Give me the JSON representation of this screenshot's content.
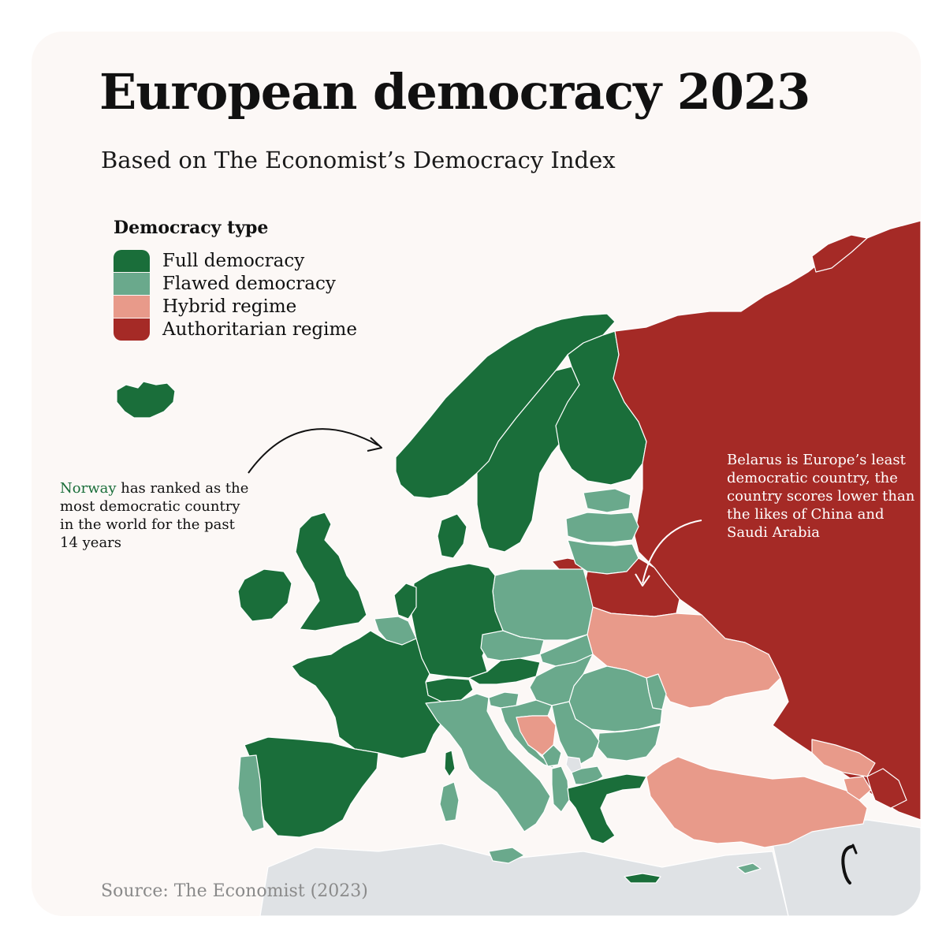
{
  "title": "European democracy 2023",
  "subtitle": "Based on The Economist’s Democracy Index",
  "legend": {
    "title": "Democracy type",
    "items": [
      {
        "label": "Full democracy",
        "color": "#1a6e3a"
      },
      {
        "label": "Flawed democracy",
        "color": "#6aa98c"
      },
      {
        "label": "Hybrid regime",
        "color": "#e89a8a"
      },
      {
        "label": "Authoritarian regime",
        "color": "#a52a26"
      }
    ]
  },
  "annotations": {
    "norway": {
      "highlight": "Norway",
      "rest": " has ranked as the most democratic country in the world for the past 14 years"
    },
    "belarus": "Belarus is Europe’s least democratic country, the country scores lower than the likes of China and Saudi Arabia"
  },
  "source": "Source: The Economist (2023)",
  "colors": {
    "background": "#fcf8f6",
    "non_europe": "#dfe2e5",
    "border": "#ffffff"
  }
}
